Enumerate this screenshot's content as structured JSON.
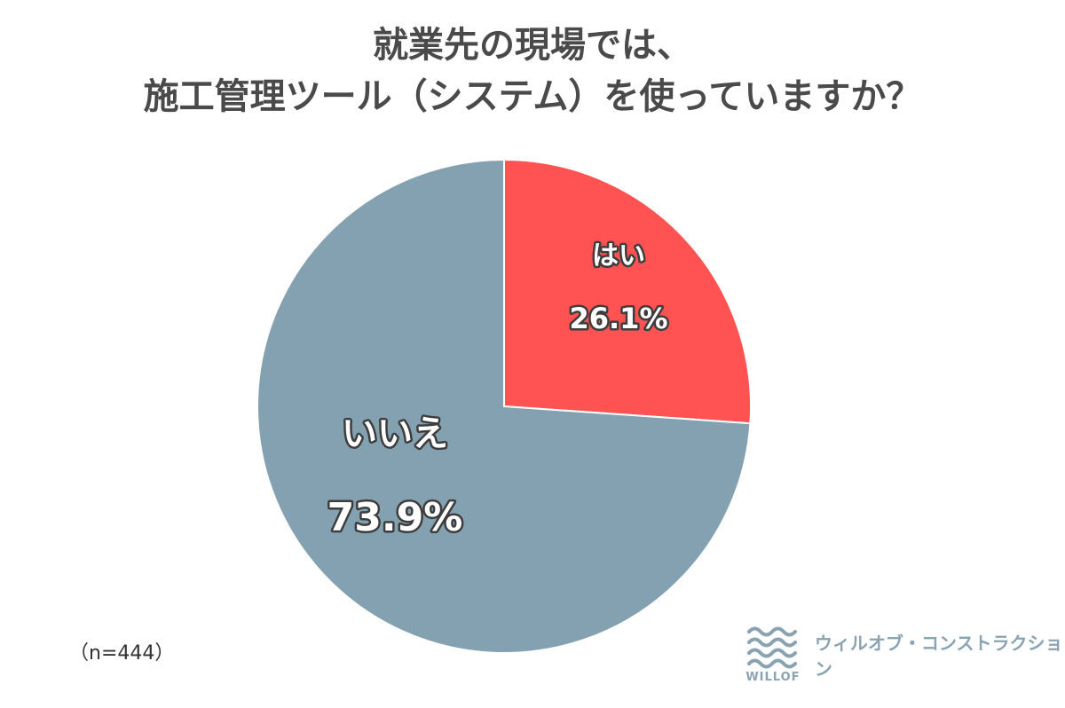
{
  "chart_data": {
    "type": "pie",
    "title_lines": [
      "就業先の現場では、",
      "施工管理ツール（システム）を使っていますか？"
    ],
    "slices": [
      {
        "label": "はい",
        "value": 26.1,
        "display": "26.1%",
        "color": "#ff5252"
      },
      {
        "label": "いいえ",
        "value": 73.9,
        "display": "73.9%",
        "color": "#84a1b1"
      }
    ]
  },
  "note": "（n=444）",
  "logo": {
    "word": "WILLOF",
    "text": "ウィルオブ・コンストラクション",
    "color": "#8aa3b1"
  }
}
